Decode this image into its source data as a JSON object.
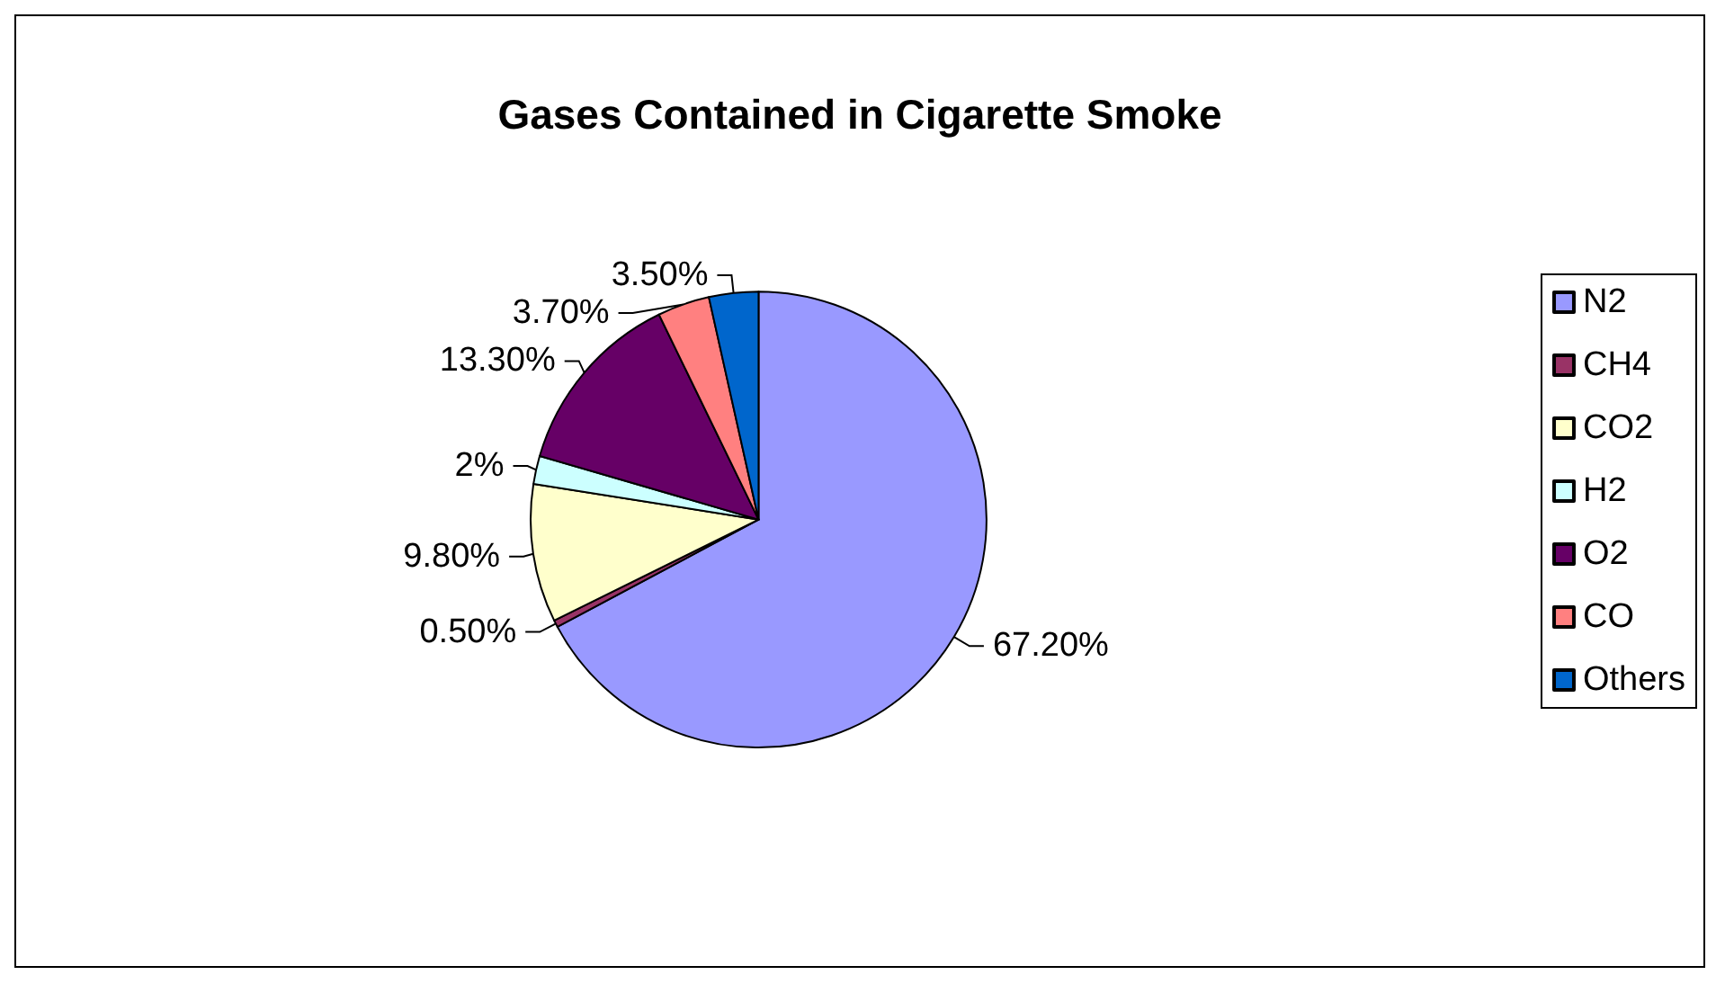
{
  "chart_data": {
    "type": "pie",
    "title": "Gases Contained in Cigarette Smoke",
    "categories": [
      "N2",
      "CH4",
      "CO2",
      "H2",
      "O2",
      "CO",
      "Others"
    ],
    "values": [
      67.2,
      0.5,
      9.8,
      2,
      13.3,
      3.7,
      3.5
    ],
    "value_labels": [
      "67.20%",
      "0.50%",
      "9.80%",
      "2%",
      "13.30%",
      "3.70%",
      "3.50%"
    ],
    "colors": [
      "#9999ff",
      "#993366",
      "#ffffcc",
      "#ccffff",
      "#660066",
      "#ff8080",
      "#0066cc"
    ],
    "legend": "right"
  }
}
